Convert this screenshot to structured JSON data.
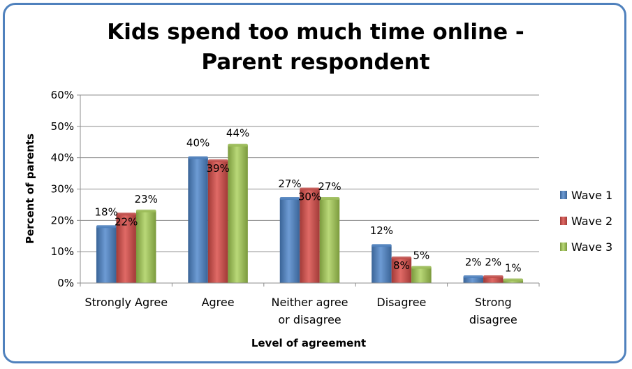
{
  "chart_data": {
    "type": "bar",
    "title_lines": [
      "Kids spend too much time online -",
      "Parent respondent"
    ],
    "xlabel": "Level of agreement",
    "ylabel": "Percent of parents",
    "ylim": [
      0,
      60
    ],
    "yticks": [
      "0%",
      "10%",
      "20%",
      "30%",
      "40%",
      "50%",
      "60%"
    ],
    "categories": [
      [
        "Strongly Agree"
      ],
      [
        "Agree"
      ],
      [
        "Neither agree",
        "or disagree"
      ],
      [
        "Disagree"
      ],
      [
        "Strong",
        "disagree"
      ]
    ],
    "series": [
      {
        "name": "Wave 1",
        "values": [
          18,
          40,
          27,
          12,
          2
        ],
        "labels": [
          "18%",
          "40%",
          "27%",
          "12%",
          "2%"
        ],
        "color": "#4f81bd"
      },
      {
        "name": "Wave 2",
        "values": [
          22,
          39,
          30,
          8,
          2
        ],
        "labels": [
          "22%",
          "39%",
          "30%",
          "8%",
          "2%"
        ],
        "color": "#c0504d"
      },
      {
        "name": "Wave 3",
        "values": [
          23,
          44,
          27,
          5,
          1
        ],
        "labels": [
          "23%",
          "44%",
          "27%",
          "5%",
          "1%"
        ],
        "color": "#9bbb59"
      }
    ],
    "grid": true,
    "legend": "right"
  }
}
